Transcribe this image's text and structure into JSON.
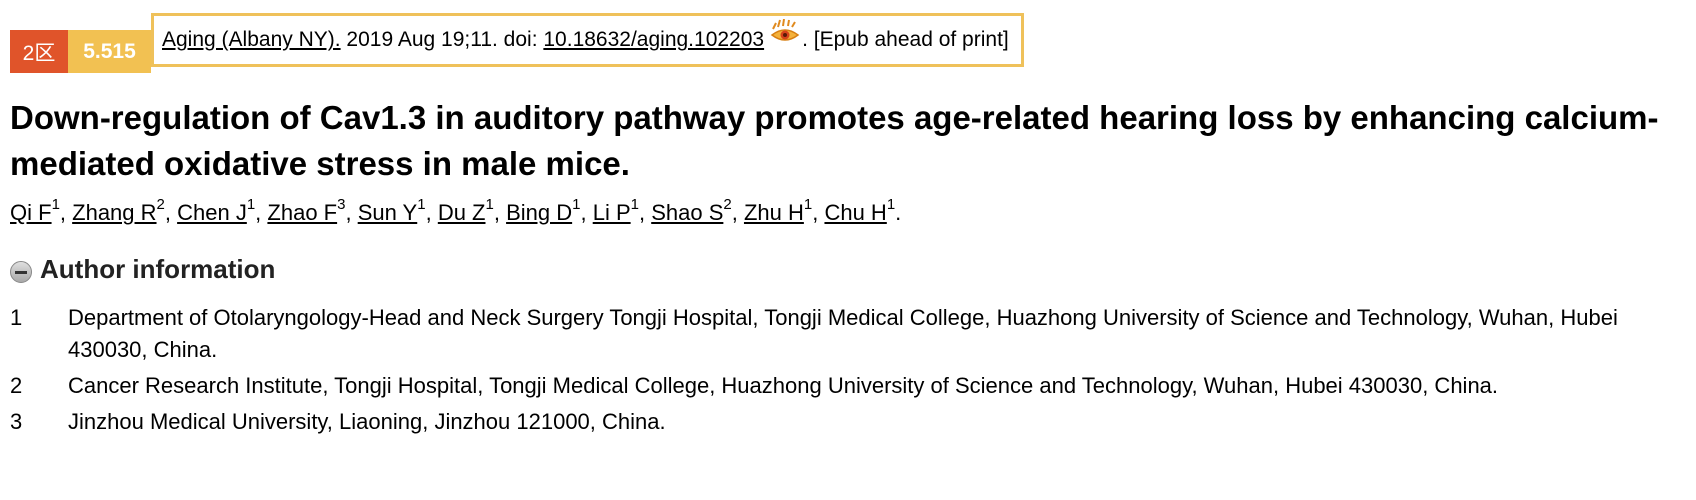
{
  "citation": {
    "zone": "2区",
    "impact_factor": "5.515",
    "journal": "Aging (Albany NY).",
    "date_volume": " 2019 Aug 19;11. doi: ",
    "doi": "10.18632/aging.102203",
    "epub": ". [Epub ahead of print]"
  },
  "article": {
    "title": "Down-regulation of Cav1.3 in auditory pathway promotes age-related hearing loss by enhancing calcium-mediated oxidative stress in male mice."
  },
  "authors": [
    {
      "name": "Qi F",
      "aff": "1"
    },
    {
      "name": "Zhang R",
      "aff": "2"
    },
    {
      "name": "Chen J",
      "aff": "1"
    },
    {
      "name": "Zhao F",
      "aff": "3"
    },
    {
      "name": "Sun Y",
      "aff": "1"
    },
    {
      "name": "Du Z",
      "aff": "1"
    },
    {
      "name": "Bing D",
      "aff": "1"
    },
    {
      "name": "Li P",
      "aff": "1"
    },
    {
      "name": "Shao S",
      "aff": "2"
    },
    {
      "name": "Zhu H",
      "aff": "1"
    },
    {
      "name": "Chu H",
      "aff": "1"
    }
  ],
  "author_information": {
    "header": "Author information",
    "affiliations": [
      {
        "num": "1",
        "text": "Department of Otolaryngology-Head and Neck Surgery Tongji Hospital, Tongji Medical College, Huazhong University of Science and Technology, Wuhan, Hubei 430030, China."
      },
      {
        "num": "2",
        "text": "Cancer Research Institute, Tongji Hospital, Tongji Medical College, Huazhong University of Science and Technology, Wuhan, Hubei 430030, China."
      },
      {
        "num": "3",
        "text": "Jinzhou Medical University, Liaoning, Jinzhou 121000, China."
      }
    ]
  },
  "colors": {
    "zone_badge": "#e0542a",
    "if_badge": "#f2c152",
    "citation_border": "#efc15a"
  },
  "icons": {
    "eye": "eye-icon",
    "collapse": "collapse-minus-icon"
  }
}
